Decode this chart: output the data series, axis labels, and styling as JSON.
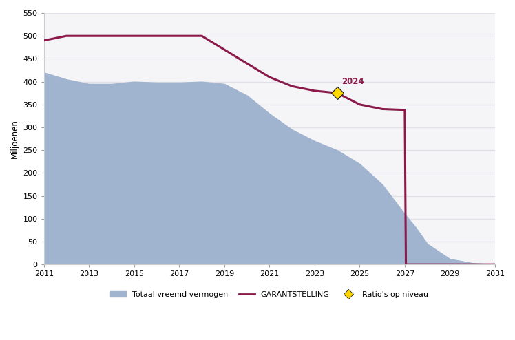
{
  "title": "",
  "ylabel": "Miljoenen",
  "xlabel": "",
  "xlim": [
    2011,
    2031
  ],
  "ylim": [
    0,
    550
  ],
  "yticks": [
    0,
    50,
    100,
    150,
    200,
    250,
    300,
    350,
    400,
    450,
    500,
    550
  ],
  "xticks": [
    2011,
    2013,
    2015,
    2017,
    2019,
    2021,
    2023,
    2025,
    2027,
    2029,
    2031
  ],
  "area_color": "#a0b4d0",
  "area_x": [
    2011,
    2012,
    2013,
    2014,
    2015,
    2016,
    2017,
    2018,
    2019,
    2020,
    2021,
    2022,
    2023,
    2024,
    2025,
    2026,
    2027,
    2027.5,
    2028,
    2029,
    2030,
    2031
  ],
  "area_y": [
    420,
    405,
    395,
    395,
    400,
    398,
    398,
    400,
    395,
    370,
    330,
    295,
    270,
    250,
    220,
    175,
    110,
    80,
    45,
    12,
    3,
    0
  ],
  "garantie_x": [
    2011,
    2012,
    2013,
    2014,
    2015,
    2016,
    2017,
    2018,
    2019,
    2020,
    2021,
    2022,
    2023,
    2024,
    2025,
    2026,
    2027,
    2027.05,
    2028,
    2029,
    2030,
    2031
  ],
  "garantie_y": [
    490,
    500,
    500,
    500,
    500,
    500,
    500,
    500,
    470,
    440,
    410,
    390,
    380,
    375,
    350,
    340,
    338,
    0,
    0,
    0,
    0,
    0
  ],
  "garantie_color": "#8b1a4a",
  "garantie_linewidth": 2.2,
  "marker_x": 2024,
  "marker_y": 375,
  "marker_color": "#ffd700",
  "marker_label": "2024",
  "annotation_color": "#8b1a4a",
  "bg_color": "#ffffff",
  "plot_bg_color": "#f5f5f8",
  "grid_color": "#e0e0e8",
  "legend_items": [
    {
      "label": "Totaal vreemd vermogen",
      "type": "area",
      "color": "#a0b4d0"
    },
    {
      "label": "GARANTSTELLING",
      "type": "line",
      "color": "#8b1a4a"
    },
    {
      "label": "Ratio's op niveau",
      "type": "marker",
      "color": "#ffd700"
    }
  ]
}
